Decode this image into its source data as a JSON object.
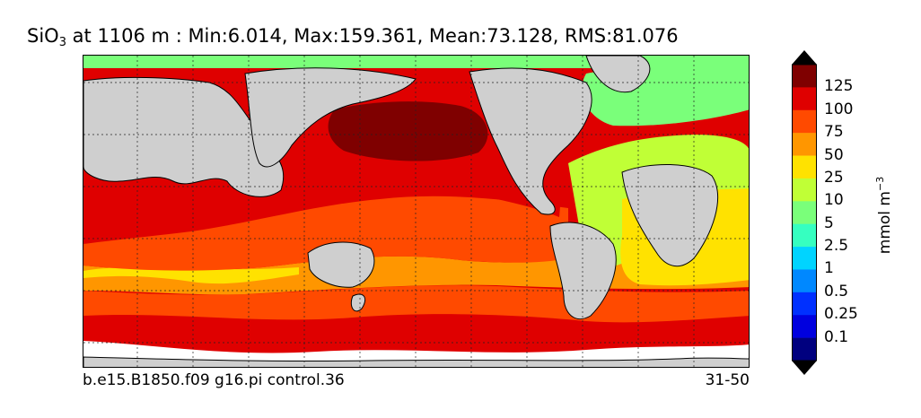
{
  "title": {
    "prefix": "SiO",
    "subscript": "3",
    "rest": " at 1106 m : Min:6.014, Max:159.361, Mean:73.128, RMS:81.076"
  },
  "footer": {
    "left": "b.e15.B1850.f09 g16.pi control.36",
    "right": "31-50"
  },
  "colorbar": {
    "unit_base": "mmol m",
    "unit_exponent": "−3",
    "labels": [
      "125",
      "100",
      "75",
      "50",
      "25",
      "10",
      "5",
      "2.5",
      "1",
      "0.5",
      "0.25",
      "0.1"
    ],
    "colors": [
      "#7f0000",
      "#df0000",
      "#ff4a00",
      "#ff9600",
      "#ffe200",
      "#c0ff36",
      "#7aff7a",
      "#36ffc0",
      "#00d4ff",
      "#0088ff",
      "#0030ff",
      "#0000df",
      "#00007f"
    ]
  },
  "colors": {
    "land": "#cfcfcf",
    "missing": "#ffffff"
  }
}
